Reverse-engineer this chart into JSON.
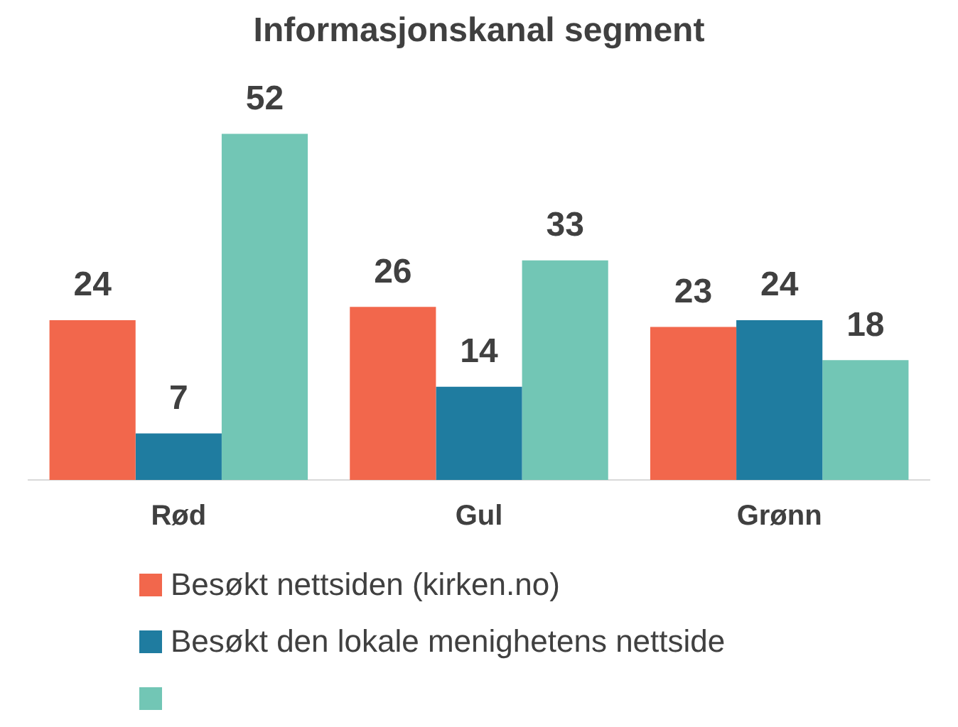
{
  "chart_data": {
    "type": "bar",
    "title": "Informasjonskanal segment",
    "categories": [
      "Rød",
      "Gul",
      "Grønn"
    ],
    "series": [
      {
        "name": "Besøkt nettsiden (kirken.no)",
        "color": "#f2674c",
        "values": [
          24,
          26,
          23
        ]
      },
      {
        "name": "Besøkt den lokale menighetens nettside",
        "color": "#1f7ca0",
        "values": [
          7,
          14,
          24
        ]
      },
      {
        "color": "#72c6b5",
        "values": [
          52,
          33,
          18
        ]
      }
    ],
    "tick_labels": "x",
    "data_labels": true,
    "legend": "bottom",
    "grid": false
  }
}
